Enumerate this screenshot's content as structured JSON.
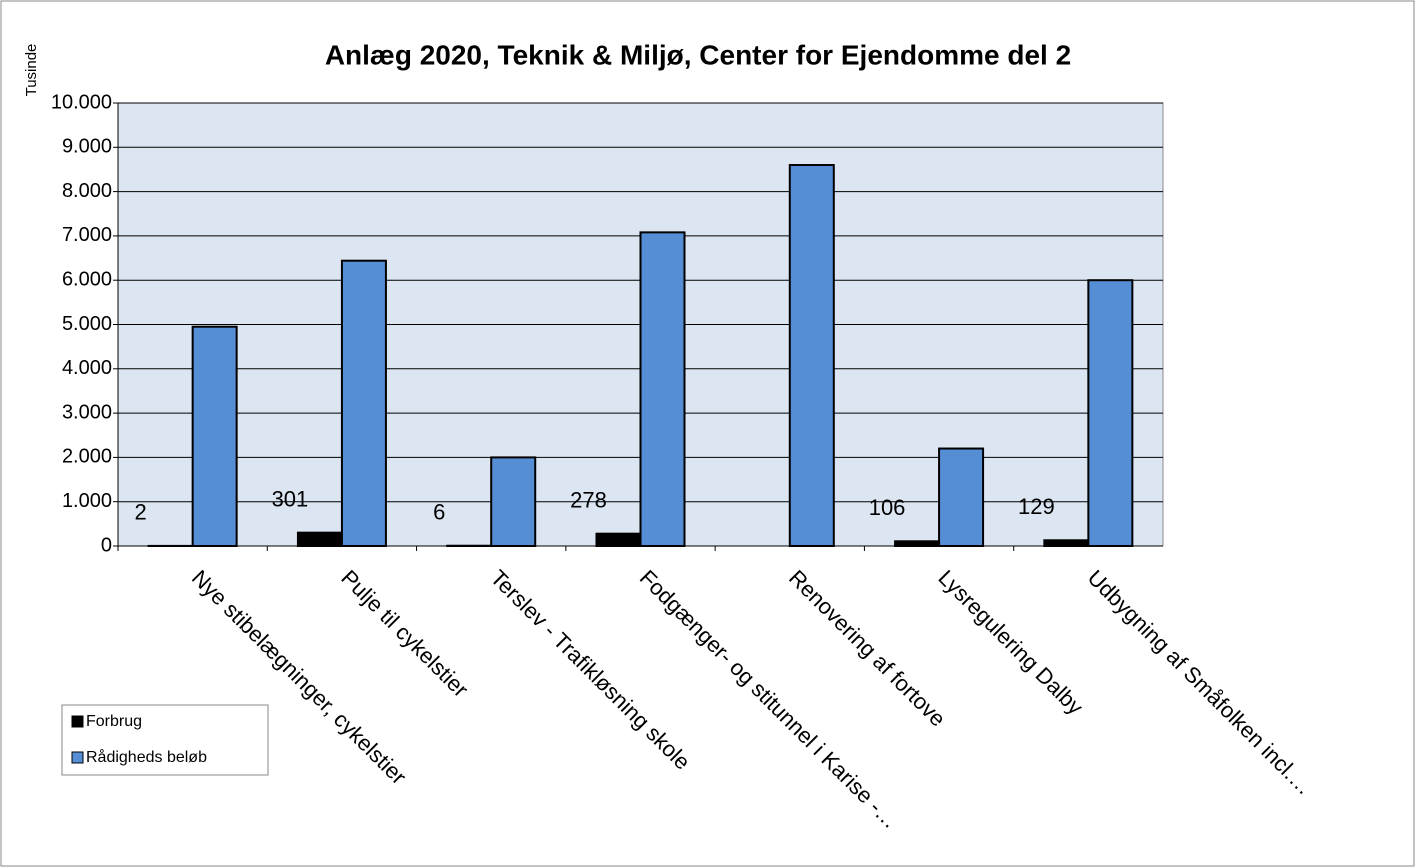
{
  "chart_data": {
    "type": "bar",
    "title": "Anlæg 2020, Teknik & Miljø, Center for Ejendomme del 2",
    "y_label": "Tusinde",
    "categories": [
      "Nye stibelægninger, cykelstier",
      "Pulje til cykelstier",
      "Terslev - Trafikløsning skole",
      "Fodgænger- og stitunnel i Karise -…",
      "Renovering af fortove",
      "Lysregulering Dalby",
      "Udbygning af Småfolken incl.…"
    ],
    "series": [
      {
        "name": "Forbrug",
        "color": "#000000",
        "values": [
          2,
          301,
          6,
          278,
          null,
          106,
          129
        ]
      },
      {
        "name": "Rådigheds beløb",
        "color": "#558ed5",
        "values": [
          4950,
          6440,
          2000,
          7080,
          8600,
          2200,
          6000
        ]
      }
    ],
    "data_labels_series": 0,
    "ylim": [
      0,
      10000
    ],
    "yticks": [
      0,
      {
        "value": 1000,
        "label": "1.000"
      },
      {
        "value": 2000,
        "label": "2.000"
      },
      {
        "value": 3000,
        "label": "3.000"
      },
      {
        "value": 4000,
        "label": "4.000"
      },
      {
        "value": 5000,
        "label": "5.000"
      },
      {
        "value": 6000,
        "label": "6.000"
      },
      {
        "value": 7000,
        "label": "7.000"
      },
      {
        "value": 8000,
        "label": "8.000"
      },
      {
        "value": 9000,
        "label": "9.000"
      },
      {
        "value": 10000,
        "label": "10.000"
      }
    ],
    "grid": true,
    "legend": "bottom-left"
  }
}
